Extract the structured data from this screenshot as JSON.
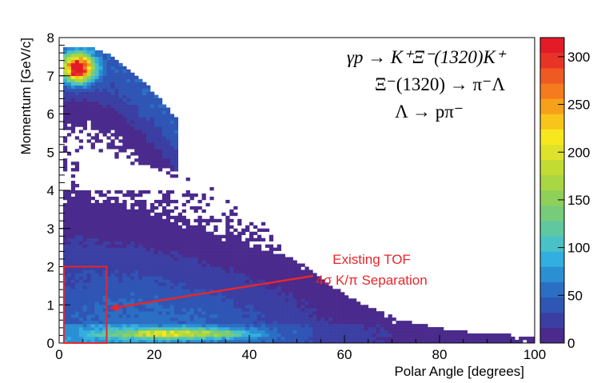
{
  "chart_data": {
    "type": "heatmap",
    "title": "",
    "xlabel": "Polar Angle [degrees]",
    "ylabel": "Momentum [GeV/c]",
    "xlim": [
      0,
      100
    ],
    "ylim": [
      0,
      8
    ],
    "x_ticks": [
      "0",
      "20",
      "40",
      "60",
      "80",
      "100"
    ],
    "y_ticks": [
      "0",
      "1",
      "2",
      "3",
      "4",
      "5",
      "6",
      "7",
      "8"
    ],
    "colorbar": {
      "range": [
        0,
        320
      ],
      "tick_labels": [
        "0",
        "50",
        "100",
        "150",
        "200",
        "250",
        "300"
      ],
      "colors": [
        "#4a2a8c",
        "#3b3fa3",
        "#2f55b5",
        "#2a6fc4",
        "#2b8fd3",
        "#33aee0",
        "#48c2c6",
        "#5fc8a0",
        "#76cc7b",
        "#8fd05a",
        "#a9d643",
        "#c2dc33",
        "#dfe22a",
        "#f7e71e",
        "#f8c61b",
        "#f7a11a",
        "#f47c1e",
        "#ef5a22",
        "#e83426",
        "#e21b26"
      ]
    },
    "reaction_lines": [
      "γp → K⁺Ξ⁻(1320)K⁺",
      "Ξ⁻(1320) → π⁻Λ",
      "Λ → pπ⁻"
    ],
    "density_regions": [
      {
        "x_range": [
          1,
          20
        ],
        "y_range": [
          5,
          7.6
        ],
        "peak_x": 4,
        "peak_y": 7.2,
        "peak_count": 320
      },
      {
        "x_range": [
          5,
          100
        ],
        "y_range": [
          0,
          7
        ],
        "peak_x": 18,
        "peak_y": 1.0,
        "peak_count": 60
      },
      {
        "x_range": [
          5,
          70
        ],
        "y_range": [
          0.05,
          0.45
        ],
        "peak_x": 25,
        "peak_y": 0.25,
        "peak_count": 130
      }
    ],
    "annotation": {
      "line1": "Existing TOF",
      "line2": "4σ K/π Separation",
      "color": "#e8262a",
      "box_x": [
        1,
        10
      ],
      "box_y": [
        0,
        2
      ],
      "arrow_to": [
        10,
        0.9
      ]
    }
  }
}
